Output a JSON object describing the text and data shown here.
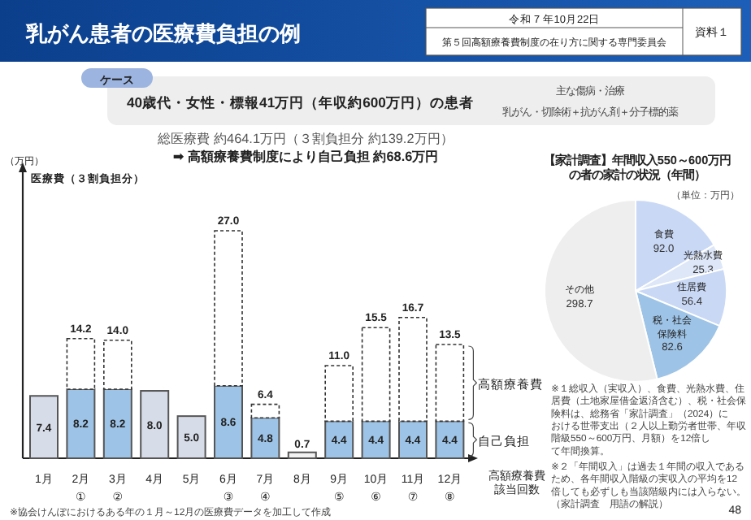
{
  "chart_data": [
    {
      "type": "bar",
      "stacked": true,
      "title": "乳がん患者の医療費負担の例",
      "ylabel": "医療費（３割負担分）",
      "categories": [
        "1月",
        "2月\n①",
        "3月\n②",
        "4月",
        "5月",
        "6月\n③",
        "7月\n④",
        "8月",
        "9月\n⑤",
        "10月\n⑥",
        "11月\n⑦",
        "12月\n⑧"
      ],
      "series": [
        {
          "name": "自己負担",
          "colors": [
            "#d6dce8",
            "#9dc3e6",
            "#9dc3e6",
            "#d6dce8",
            "#d6dce8",
            "#9dc3e6",
            "#9dc3e6",
            "#f2f2f2",
            "#9dc3e6",
            "#9dc3e6",
            "#9dc3e6",
            "#9dc3e6"
          ],
          "values": [
            7.4,
            8.2,
            8.2,
            8.0,
            5.0,
            8.6,
            4.8,
            0.7,
            4.4,
            4.4,
            4.4,
            4.4
          ],
          "value_labels": [
            "7.4",
            "8.2",
            "8.2",
            "8.0",
            "5.0",
            "8.6",
            "4.8",
            "0.7",
            "4.4",
            "4.4",
            "4.4",
            "4.4"
          ]
        },
        {
          "name": "高額療養費",
          "color": "#ffffff",
          "line_style": "dashed",
          "values": [
            null,
            6.0,
            5.8,
            null,
            null,
            18.4,
            1.6,
            null,
            6.6,
            11.1,
            12.3,
            9.1
          ]
        }
      ],
      "totals": [
        null,
        "14.2",
        "14.0",
        null,
        null,
        "27.0",
        "6.4",
        null,
        "11.0",
        "15.5",
        "16.7",
        "13.5"
      ],
      "annotations": [
        "令和７年10月22日",
        "第５回高額療養費制度の在り方に関する専門委員会",
        "資料１",
        "ケース",
        "40歳代・女性・標報41万円（年収約600万円）の患者",
        "主な傷病・治療",
        "乳がん・切除術＋抗がん剤＋分子標的薬",
        "総医療費 約464.1万円（３割負担分 約139.2万円）",
        "➡ 高額療養費制度により自己負担 約68.6万円",
        "（万円）",
        "高額療養費該当回数",
        "※協会けんぽにおけるある年の１月～12月の医療費データを加工して作成",
        "48"
      ]
    },
    {
      "type": "pie",
      "title": "【家計調査】年間収入550～600万円の者の家計の状況（年間）",
      "subtitle": "（単位：万円）",
      "categories": [
        "食費",
        "光熱水費",
        "住居費",
        "税・社会保険料",
        "その他"
      ],
      "values": [
        92.0,
        25.3,
        56.4,
        82.6,
        298.7
      ],
      "colors": [
        "#c9d8f5",
        "#dde7f8",
        "#c9d8f5",
        "#9dc3e6",
        "#eeeeee"
      ],
      "value_labels": [
        "92.0",
        "25.3",
        "56.4",
        "82.6",
        "298.7"
      ],
      "annotations": [
        "※１総収入（実収入）、食費、光熱水費、住居費（土地家屋借金返済含む）、税・社会保険料は、総務省「家計調査」（2024）における世帯支出（２人以上勤労者世帯、年収階級550～600万円、月額）を12倍して年間換算。",
        "※２「年間収入」は過去１年間の収入であるため、各年間収入階級の実収入の平均を12倍しても必ずしも当該階級内には入らない。（家計調査　用語の解説）"
      ]
    }
  ]
}
